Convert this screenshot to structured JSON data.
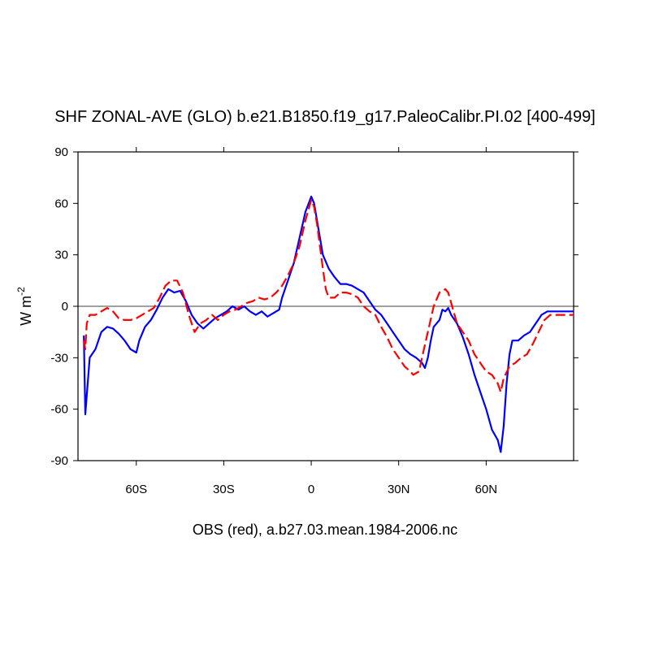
{
  "chart_data": {
    "type": "line",
    "title": "SHF ZONAL-AVE (GLO) b.e21.B1850.f19_g17.PaleoCalibr.PI.02 [400-499]",
    "y_label": "W m",
    "y_label_sup": "-2",
    "x_label": "OBS (red), a.b27.03.mean.1984-2006.nc",
    "xlim": [
      -80,
      90
    ],
    "xticks": [
      {
        "value": -60,
        "label": "60S"
      },
      {
        "value": -30,
        "label": "30S"
      },
      0,
      {
        "value": 30,
        "label": "30N"
      },
      {
        "value": 60,
        "label": "60N"
      }
    ],
    "ylim": [
      -90,
      90
    ],
    "yticks": [
      -90,
      -60,
      -30,
      0,
      30,
      60,
      90
    ],
    "zero_line": true,
    "series": [
      {
        "color": "#0000ff",
        "dash": false,
        "x": [
          -78,
          -77.5,
          -76,
          -74,
          -72,
          -70,
          -68,
          -66,
          -64,
          -62,
          -60,
          -59,
          -57,
          -55,
          -53,
          -51,
          -49,
          -47,
          -45,
          -43,
          -41,
          -39,
          -37,
          -35,
          -33,
          -31,
          -29,
          -27,
          -25,
          -23,
          -21,
          -19,
          -17,
          -15,
          -13,
          -11,
          -10,
          -8,
          -6,
          -4,
          -2,
          0,
          1,
          2,
          3,
          4,
          6,
          8,
          10,
          12,
          14,
          16,
          18,
          20,
          22,
          24,
          26,
          28,
          30,
          32,
          34,
          36,
          38,
          39,
          40,
          41,
          42,
          44,
          45,
          46,
          47,
          48,
          50,
          52,
          54,
          56,
          58,
          60,
          62,
          64,
          65,
          66,
          67,
          68,
          69,
          71,
          73,
          75,
          77,
          79,
          81,
          84,
          90
        ],
        "values": [
          -17,
          -63,
          -30,
          -25,
          -15,
          -12,
          -13,
          -16,
          -20,
          -25,
          -27,
          -20,
          -12,
          -8,
          -2,
          5,
          10,
          8,
          9,
          3,
          -5,
          -10,
          -13,
          -10,
          -7,
          -5,
          -3,
          0,
          -2,
          0,
          -3,
          -5,
          -3,
          -6,
          -4,
          -2,
          5,
          15,
          25,
          40,
          55,
          64,
          60,
          50,
          40,
          30,
          22,
          17,
          13,
          13,
          12,
          10,
          8,
          3,
          -2,
          -5,
          -10,
          -15,
          -20,
          -25,
          -28,
          -30,
          -33,
          -36,
          -30,
          -20,
          -12,
          -8,
          -2,
          -3,
          -1,
          -5,
          -10,
          -18,
          -28,
          -40,
          -50,
          -60,
          -72,
          -78,
          -85,
          -70,
          -45,
          -28,
          -20,
          -20,
          -17,
          -15,
          -10,
          -5,
          -3,
          -3,
          -3
        ]
      },
      {
        "color": "#ff0000",
        "dash": true,
        "x": [
          -78,
          -77.5,
          -77,
          -76,
          -74,
          -72,
          -70,
          -68,
          -66,
          -64,
          -62,
          -60,
          -58,
          -56,
          -54,
          -52,
          -50,
          -48,
          -46,
          -44,
          -42,
          -40,
          -38,
          -36,
          -34,
          -32,
          -30,
          -28,
          -26,
          -24,
          -22,
          -20,
          -18,
          -16,
          -14,
          -12,
          -10,
          -8,
          -6,
          -4,
          -2,
          0,
          1,
          2,
          3,
          4,
          5,
          6,
          8,
          10,
          12,
          14,
          16,
          18,
          20,
          22,
          24,
          26,
          28,
          30,
          32,
          34,
          35,
          37,
          38,
          40,
          42,
          44,
          46,
          47,
          48,
          50,
          52,
          54,
          56,
          58,
          60,
          62,
          64,
          65,
          66,
          68,
          70,
          72,
          74,
          76,
          78,
          80,
          82,
          85,
          90
        ],
        "values": [
          -20,
          -25,
          -10,
          -5,
          -5,
          -3,
          -1,
          -3,
          -7,
          -8,
          -8,
          -7,
          -5,
          -3,
          -1,
          5,
          12,
          15,
          15,
          8,
          -5,
          -15,
          -10,
          -8,
          -5,
          -8,
          -5,
          -3,
          -2,
          0,
          2,
          3,
          5,
          4,
          5,
          8,
          12,
          18,
          25,
          35,
          50,
          62,
          58,
          48,
          35,
          22,
          10,
          5,
          5,
          8,
          8,
          7,
          5,
          0,
          -3,
          -5,
          -12,
          -18,
          -25,
          -30,
          -35,
          -38,
          -40,
          -38,
          -30,
          -15,
          0,
          8,
          10,
          8,
          2,
          -10,
          -15,
          -20,
          -28,
          -33,
          -38,
          -40,
          -45,
          -50,
          -42,
          -35,
          -33,
          -30,
          -28,
          -22,
          -15,
          -8,
          -5,
          -5,
          -5
        ]
      }
    ]
  }
}
